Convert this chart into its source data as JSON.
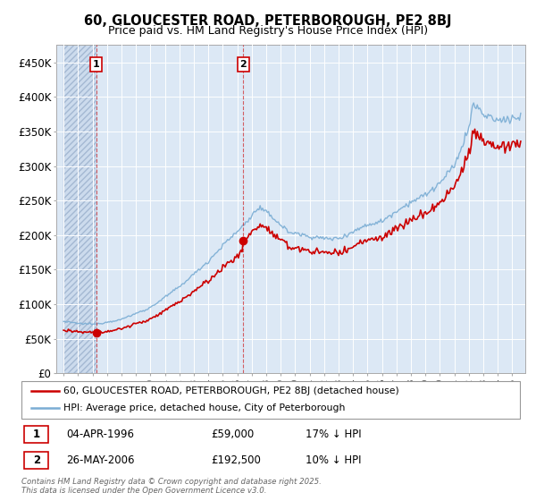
{
  "title_line1": "60, GLOUCESTER ROAD, PETERBOROUGH, PE2 8BJ",
  "title_line2": "Price paid vs. HM Land Registry's House Price Index (HPI)",
  "ylim": [
    0,
    475000
  ],
  "yticks": [
    0,
    50000,
    100000,
    150000,
    200000,
    250000,
    300000,
    350000,
    400000,
    450000
  ],
  "ytick_labels": [
    "£0",
    "£50K",
    "£100K",
    "£150K",
    "£200K",
    "£250K",
    "£300K",
    "£350K",
    "£400K",
    "£450K"
  ],
  "legend1": "60, GLOUCESTER ROAD, PETERBOROUGH, PE2 8BJ (detached house)",
  "legend2": "HPI: Average price, detached house, City of Peterborough",
  "legend1_color": "#cc0000",
  "legend2_color": "#7aadd4",
  "annotation1_label": "1",
  "annotation1_date": "04-APR-1996",
  "annotation1_price": "£59,000",
  "annotation1_hpi": "17% ↓ HPI",
  "annotation2_label": "2",
  "annotation2_date": "26-MAY-2006",
  "annotation2_price": "£192,500",
  "annotation2_hpi": "10% ↓ HPI",
  "footer": "Contains HM Land Registry data © Crown copyright and database right 2025.\nThis data is licensed under the Open Government Licence v3.0.",
  "plot_bg_color": "#dce8f5",
  "hatch_bg_color": "#c8d8ec",
  "sale1_year": 1996.25,
  "sale1_price": 59000,
  "sale2_year": 2006.417,
  "sale2_price": 192500
}
